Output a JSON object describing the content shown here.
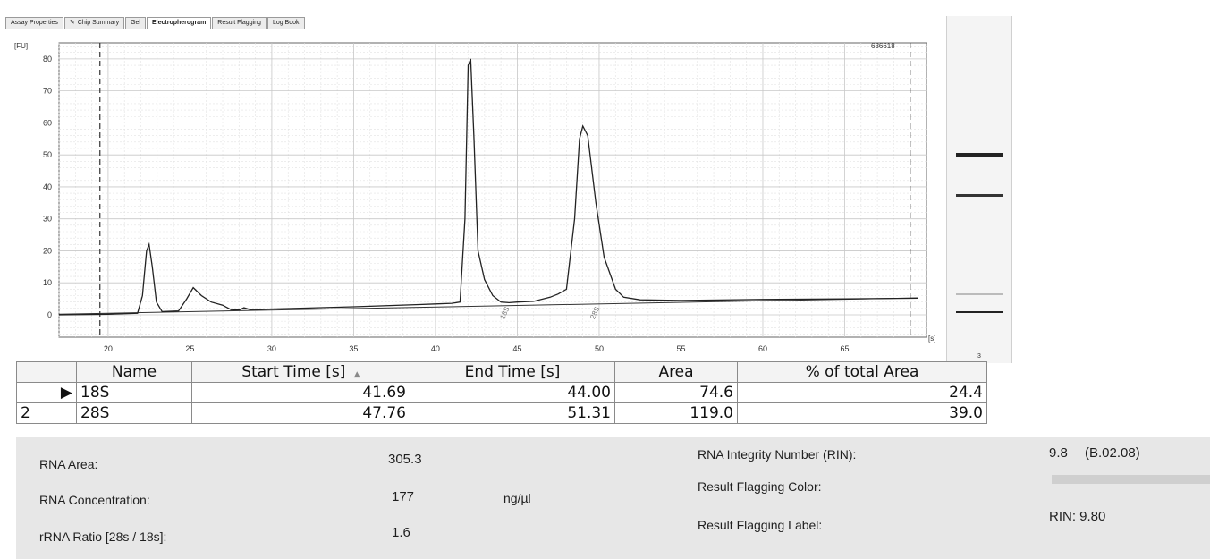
{
  "tabs": [
    {
      "label": "Assay Properties",
      "icon": ""
    },
    {
      "label": "Chip Summary",
      "icon": "pencil-icon"
    },
    {
      "label": "Gel",
      "icon": ""
    },
    {
      "label": "Electropherogram",
      "icon": ""
    },
    {
      "label": "Result Flagging",
      "icon": ""
    },
    {
      "label": "Log Book",
      "icon": ""
    }
  ],
  "chart_data": {
    "type": "line",
    "y_unit_label": "[FU]",
    "x_unit_label": "[s]",
    "corner_label": "636618",
    "xlim": [
      17,
      70
    ],
    "ylim": [
      -7,
      85
    ],
    "x_ticks": [
      20,
      25,
      30,
      35,
      40,
      45,
      50,
      55,
      60,
      65
    ],
    "y_ticks": [
      0,
      10,
      20,
      30,
      40,
      50,
      60,
      70,
      80
    ],
    "series": [
      {
        "values_xy": [
          [
            17,
            0
          ],
          [
            20,
            0.2
          ],
          [
            21.8,
            0.5
          ],
          [
            22.1,
            6
          ],
          [
            22.35,
            20
          ],
          [
            22.5,
            22
          ],
          [
            22.7,
            15
          ],
          [
            22.95,
            4
          ],
          [
            23.3,
            1
          ],
          [
            24.3,
            1.2
          ],
          [
            24.8,
            5
          ],
          [
            25.2,
            8.5
          ],
          [
            25.7,
            6
          ],
          [
            26.3,
            4
          ],
          [
            27,
            3
          ],
          [
            27.5,
            1.6
          ],
          [
            28,
            1.5
          ],
          [
            28.3,
            2.2
          ],
          [
            28.7,
            1.6
          ],
          [
            30,
            1.8
          ],
          [
            35,
            2.5
          ],
          [
            39,
            3.2
          ],
          [
            40,
            3.4
          ],
          [
            41,
            3.6
          ],
          [
            41.5,
            4
          ],
          [
            41.8,
            30
          ],
          [
            42,
            78
          ],
          [
            42.15,
            80
          ],
          [
            42.35,
            55
          ],
          [
            42.6,
            20
          ],
          [
            43,
            11
          ],
          [
            43.5,
            6
          ],
          [
            44,
            4
          ],
          [
            44.5,
            3.8
          ],
          [
            45,
            4
          ],
          [
            46,
            4.2
          ],
          [
            47,
            5.5
          ],
          [
            47.5,
            6.5
          ],
          [
            48,
            8
          ],
          [
            48.5,
            30
          ],
          [
            48.8,
            55
          ],
          [
            49,
            59
          ],
          [
            49.3,
            56
          ],
          [
            49.8,
            35
          ],
          [
            50.3,
            18
          ],
          [
            51,
            8
          ],
          [
            51.5,
            5.5
          ],
          [
            52.5,
            4.7
          ],
          [
            55,
            4.5
          ],
          [
            60,
            4.8
          ],
          [
            65,
            5
          ],
          [
            69.5,
            5.2
          ]
        ]
      }
    ],
    "baseline": [
      [
        17,
        0.2
      ],
      [
        69.5,
        5.3
      ]
    ],
    "markers": [
      {
        "x": 44.2,
        "label": "18S"
      },
      {
        "x": 49.7,
        "label": "28S"
      }
    ],
    "dashed_vlines": [
      19.5,
      69
    ],
    "grid": true
  },
  "gel": {
    "lane_label": "3"
  },
  "peak_table": {
    "headers": [
      "Name",
      "Start Time [s]",
      "End Time [s]",
      "Area",
      "% of total Area"
    ],
    "sort_indicator": "▲",
    "rows": [
      {
        "row_header": "▶",
        "name": "18S",
        "start": "41.69",
        "end": "44.00",
        "area": "74.6",
        "pct": "24.4"
      },
      {
        "row_header": "2",
        "name": "28S",
        "start": "47.76",
        "end": "51.31",
        "area": "119.0",
        "pct": "39.0"
      }
    ]
  },
  "summary": {
    "rna_area_label": "RNA Area:",
    "rna_area_value": "305.3",
    "rna_conc_label": "RNA Concentration:",
    "rna_conc_value": "177",
    "rna_conc_unit": "ng/µl",
    "rrna_ratio_label": "rRNA Ratio [28s / 18s]:",
    "rrna_ratio_value": "1.6",
    "rin_label": "RNA Integrity Number (RIN):",
    "rin_value": "9.8",
    "rin_version": "(B.02.08)",
    "flag_color_label": "Result Flagging Color:",
    "flag_label_label": "Result Flagging Label:",
    "flag_label_value": "RIN: 9.80",
    "flag_color": "#cfcfcf"
  }
}
